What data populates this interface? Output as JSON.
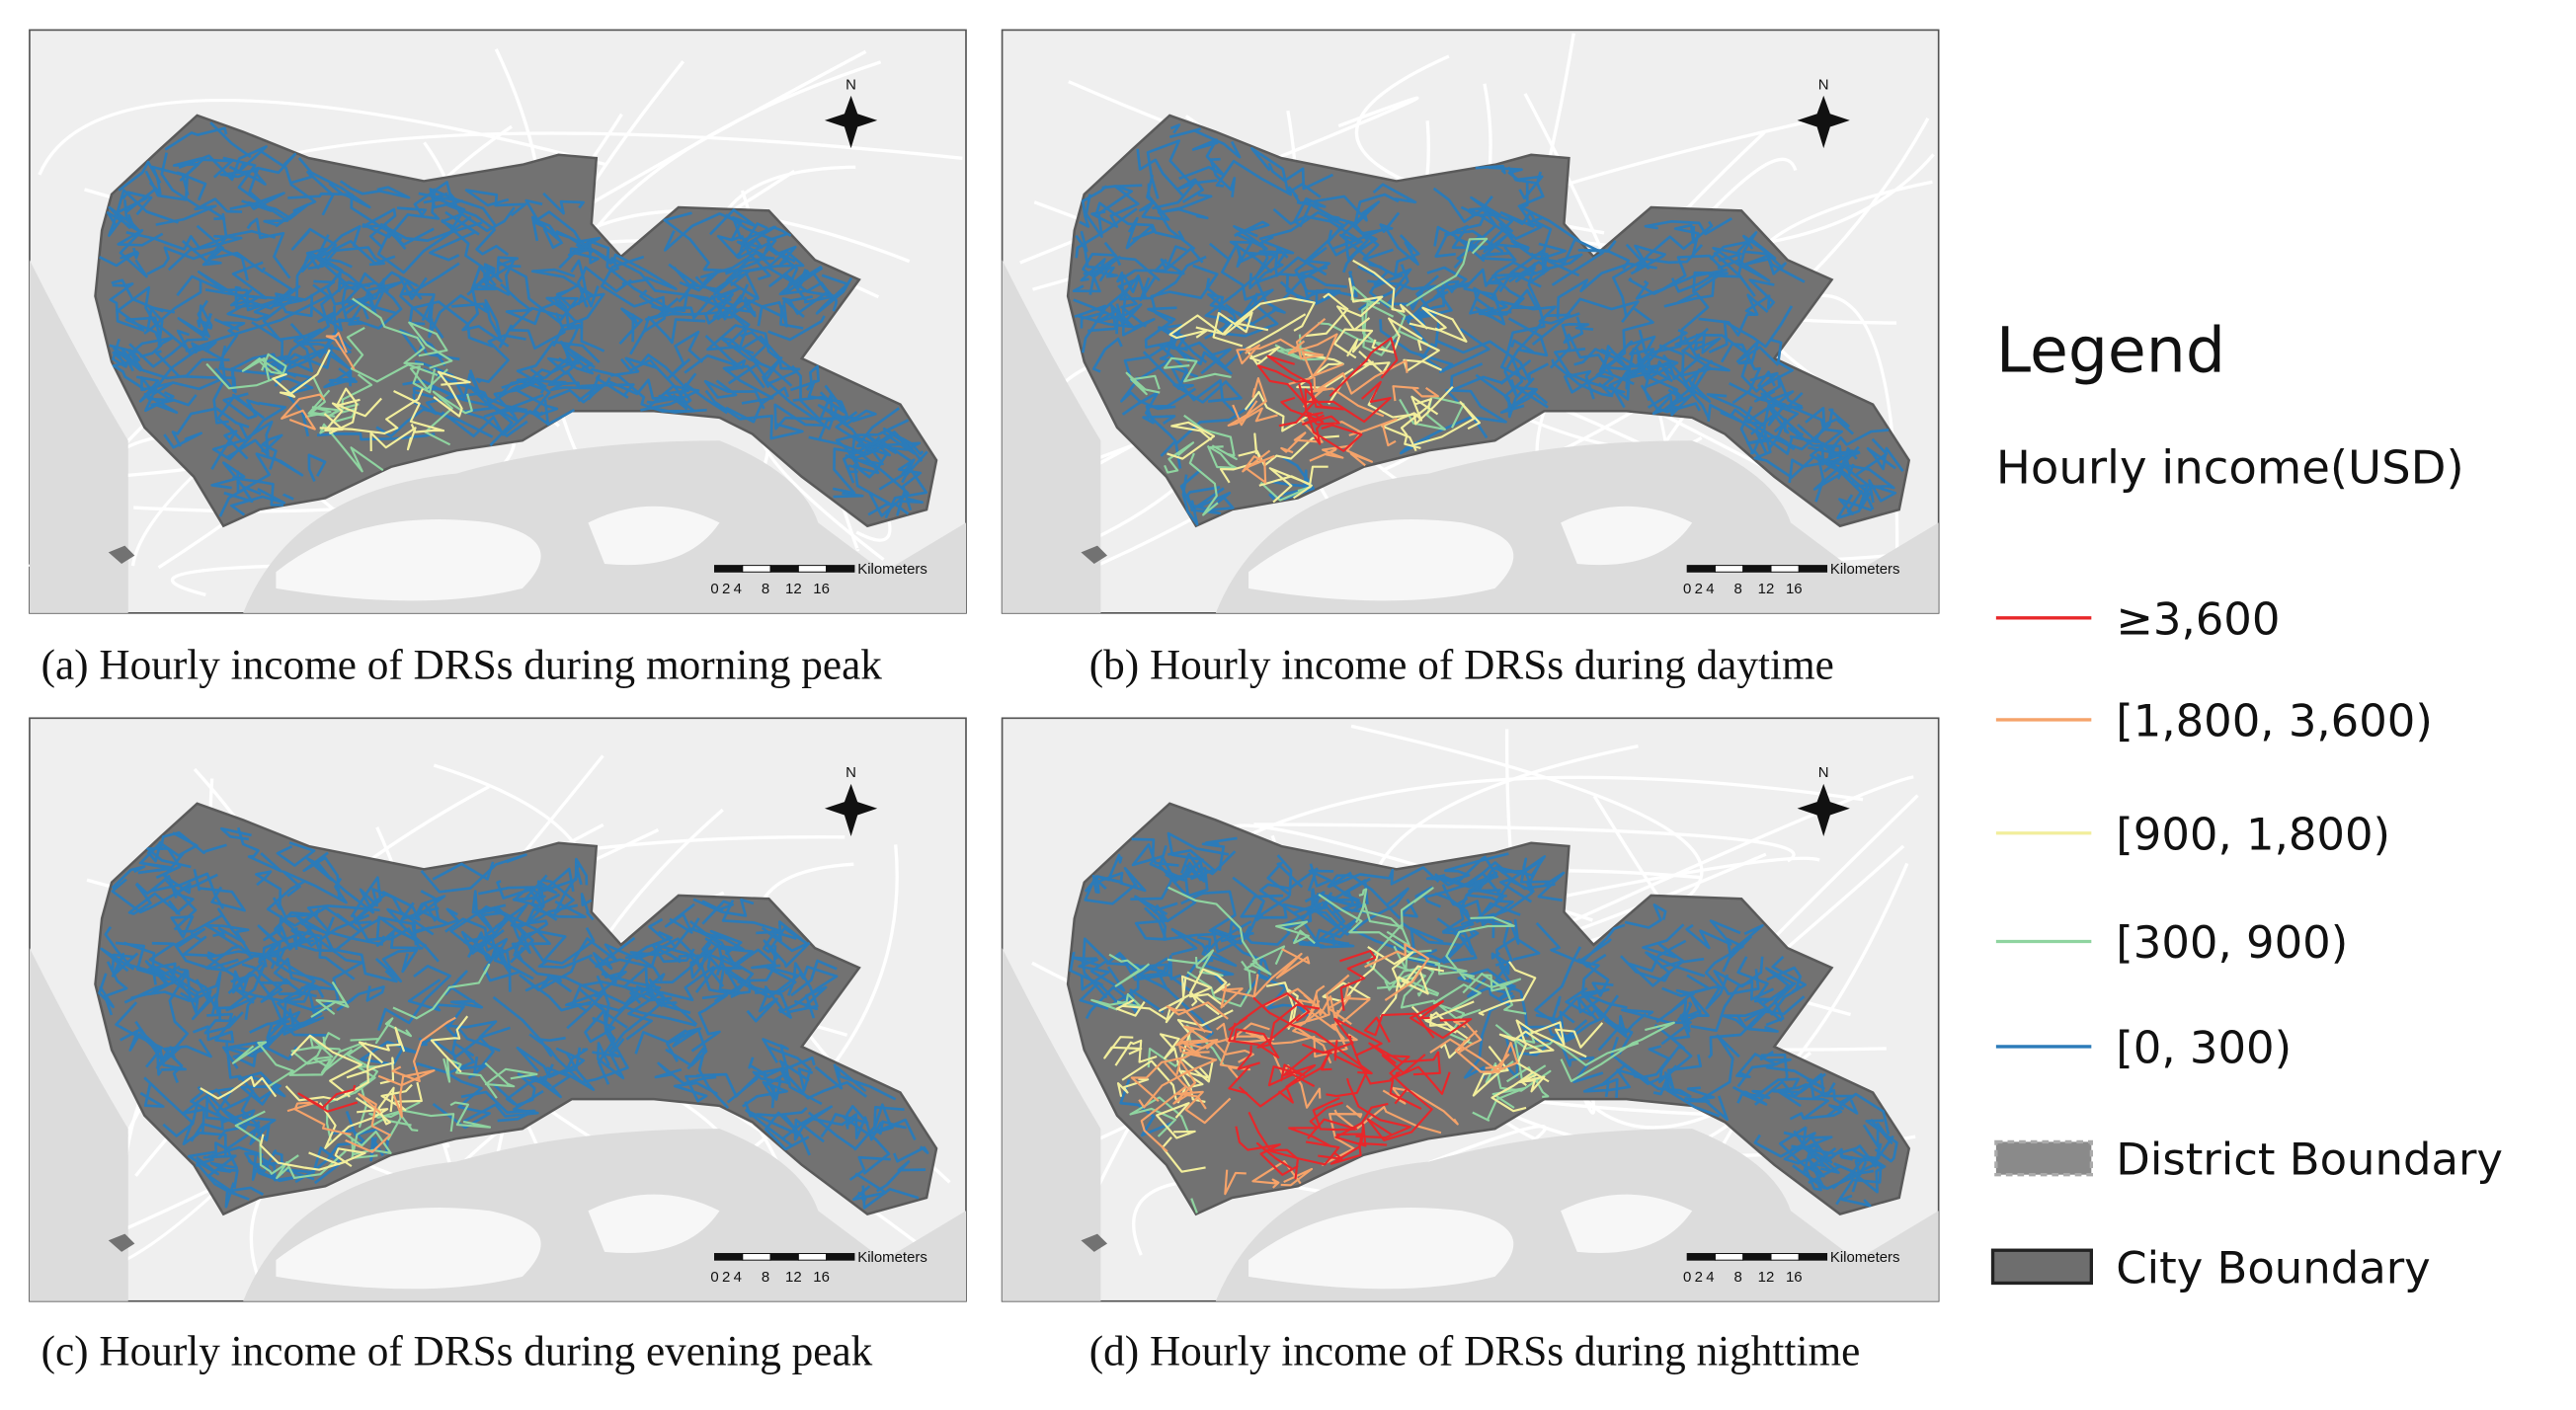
{
  "panels": [
    {
      "caption": "(a) Hourly income of DRSs during morning peak"
    },
    {
      "caption": "(b) Hourly income of DRSs during daytime"
    },
    {
      "caption": "(c) Hourly income of DRSs during evening peak"
    },
    {
      "caption": "(d) Hourly income of DRSs during nighttime"
    }
  ],
  "scale_bar": {
    "unit": "Kilometers",
    "ticks": [
      0,
      2,
      4,
      8,
      12,
      16
    ]
  },
  "north": "N",
  "legend": {
    "title": "Legend",
    "subtitle": "Hourly income(USD)",
    "items": [
      {
        "label": "≥3,600",
        "color": "#e8272a"
      },
      {
        "label": "[1,800, 3,600)",
        "color": "#f5a36a"
      },
      {
        "label": "[900, 1,800)",
        "color": "#f2ee9c"
      },
      {
        "label": "[300, 900)",
        "color": "#8fd4a0"
      },
      {
        "label": "[0, 300)",
        "color": "#2b7bb9"
      },
      {
        "label": "District Boundary",
        "color": "#8a8a8a"
      },
      {
        "label": "City Boundary",
        "color": "#6e6e6e"
      }
    ]
  }
}
